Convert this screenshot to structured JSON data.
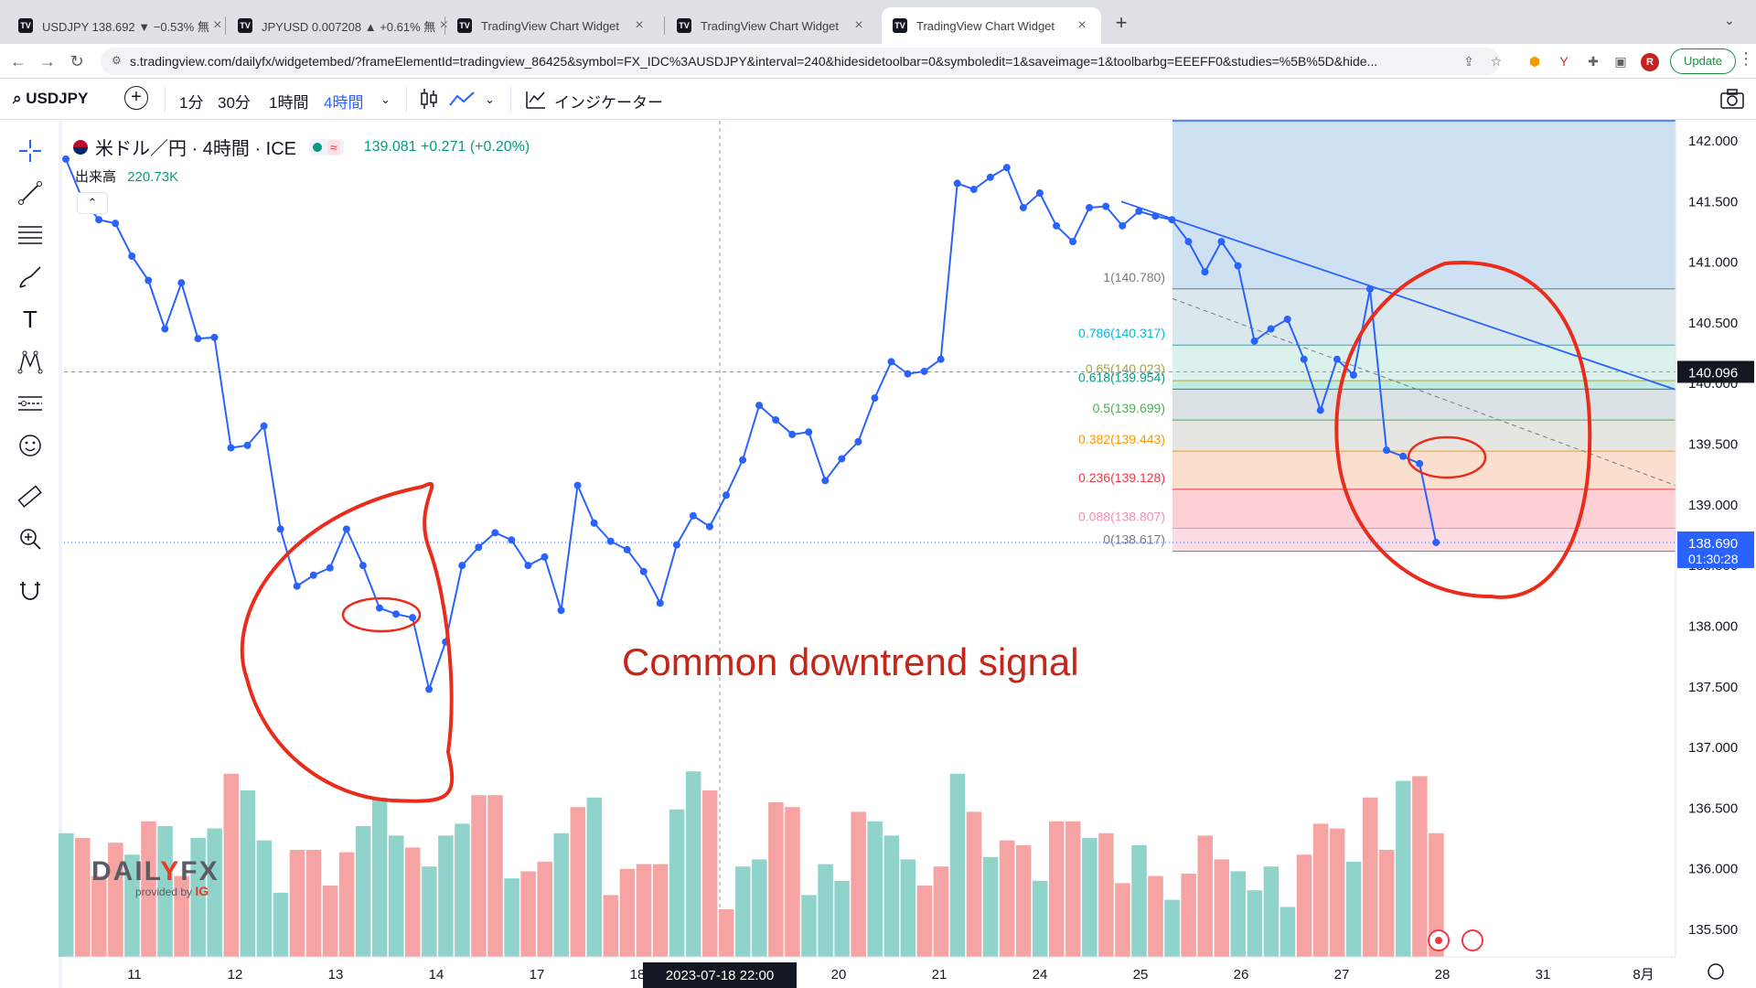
{
  "browser": {
    "tabs": [
      {
        "title": "USDJPY 138.692 ▼ −0.53% 無",
        "active": false
      },
      {
        "title": "JPYUSD 0.007208 ▲ +0.61% 無",
        "active": false
      },
      {
        "title": "TradingView Chart Widget",
        "active": false
      },
      {
        "title": "TradingView Chart Widget",
        "active": false
      },
      {
        "title": "TradingView Chart Widget",
        "active": true
      }
    ],
    "favicon_text": "TV",
    "url": "s.tradingview.com/dailyfx/widgetembed/?frameElementId=tradingview_86425&symbol=FX_IDC%3AUSDJPY&interval=240&hidesidetoolbar=0&symboledit=1&saveimage=1&toolbarbg=EEEFF0&studies=%5B%5D&hide...",
    "profile_initial": "R",
    "update_label": "Update"
  },
  "toolbar": {
    "symbol": "USDJPY",
    "intervals": [
      "1分",
      "30分",
      "1時間",
      "4時間"
    ],
    "active_interval": "4時間",
    "indicators_label": "インジケーター"
  },
  "legend": {
    "title": "米ドル／円 · 4時間 · ICE",
    "price": "139.081  +0.271 (+0.20%)",
    "volume_label": "出来高",
    "volume_value": "220.73K"
  },
  "annotation": "Common downtrend signal",
  "logo": {
    "brand_prefix": "DAIL",
    "brand_mid": "Y",
    "brand_suffix": "FX",
    "provided_by": "provided by",
    "ig": "IG"
  },
  "colors": {
    "line": "#2962ff",
    "up_volume": "#8fd3cb",
    "down_volume": "#f5a3a3",
    "circle": "#ea2c1c",
    "last_price": "#2962ff",
    "cursor_price": "#131722"
  },
  "chart_data": {
    "type": "line",
    "symbol": "USDJPY",
    "ylim": [
      135.3,
      142.1
    ],
    "y_ticks": [
      "142.000",
      "141.500",
      "141.000",
      "140.500",
      "140.000",
      "139.500",
      "139.000",
      "138.500",
      "138.000",
      "137.500",
      "137.000",
      "136.500",
      "136.000",
      "135.500"
    ],
    "x_ticks": [
      "11",
      "12",
      "13",
      "14",
      "17",
      "18",
      "20",
      "21",
      "24",
      "25",
      "26",
      "27",
      "28",
      "31",
      "8月"
    ],
    "cursor_date": "2023-07-18   22:00",
    "cursor_price": "140.096",
    "last_price": "138.690",
    "countdown": "01:30:28",
    "prices": [
      141.85,
      141.52,
      141.35,
      141.32,
      141.05,
      140.85,
      140.45,
      140.83,
      140.37,
      140.38,
      139.47,
      139.49,
      139.65,
      138.8,
      138.33,
      138.42,
      138.48,
      138.8,
      138.5,
      138.15,
      138.1,
      138.07,
      137.48,
      137.87,
      138.5,
      138.65,
      138.77,
      138.71,
      138.5,
      138.57,
      138.13,
      139.16,
      138.85,
      138.7,
      138.63,
      138.45,
      138.19,
      138.67,
      138.91,
      138.82,
      139.08,
      139.37,
      139.82,
      139.7,
      139.58,
      139.6,
      139.2,
      139.38,
      139.52,
      139.88,
      140.18,
      140.08,
      140.1,
      140.2,
      141.65,
      141.6,
      141.7,
      141.78,
      141.45,
      141.57,
      141.3,
      141.17,
      141.45,
      141.46,
      141.3,
      141.42,
      141.38,
      141.35,
      141.17,
      140.92,
      141.17,
      140.97,
      140.35,
      140.45,
      140.53,
      140.2,
      139.78,
      140.2,
      140.07,
      140.78,
      139.45,
      139.4,
      139.34,
      138.69
    ],
    "volume": {
      "values": [
        0.52,
        0.5,
        0.34,
        0.48,
        0.43,
        0.57,
        0.55,
        0.34,
        0.5,
        0.54,
        0.77,
        0.7,
        0.49,
        0.27,
        0.45,
        0.45,
        0.3,
        0.44,
        0.55,
        0.67,
        0.51,
        0.46,
        0.38,
        0.51,
        0.56,
        0.68,
        0.68,
        0.33,
        0.36,
        0.4,
        0.52,
        0.63,
        0.67,
        0.26,
        0.37,
        0.39,
        0.39,
        0.62,
        0.78,
        0.7,
        0.2,
        0.38,
        0.41,
        0.65,
        0.63,
        0.26,
        0.39,
        0.32,
        0.61,
        0.57,
        0.51,
        0.41,
        0.3,
        0.38,
        0.77,
        0.61,
        0.42,
        0.49,
        0.47,
        0.32,
        0.57,
        0.57,
        0.5,
        0.52,
        0.31,
        0.47,
        0.34,
        0.24,
        0.35,
        0.51,
        0.41,
        0.36,
        0.28,
        0.38,
        0.21,
        0.43,
        0.56,
        0.54,
        0.4,
        0.67,
        0.45,
        0.74,
        0.76,
        0.52
      ],
      "up": [
        1,
        0,
        0,
        0,
        1,
        0,
        1,
        0,
        1,
        1,
        0,
        1,
        1,
        1,
        0,
        0,
        0,
        0,
        1,
        1,
        1,
        0,
        1,
        1,
        1,
        0,
        0,
        1,
        0,
        0,
        1,
        0,
        1,
        0,
        0,
        0,
        0,
        1,
        1,
        0,
        0,
        1,
        1,
        0,
        0,
        1,
        1,
        1,
        0,
        1,
        1,
        1,
        0,
        0,
        1,
        0,
        1,
        0,
        0,
        1,
        0,
        0,
        1,
        0,
        0,
        1,
        0,
        1,
        0,
        0,
        0,
        1,
        1,
        1,
        1,
        0,
        0,
        0,
        1,
        0,
        0,
        1,
        0,
        0
      ]
    },
    "fibonacci": [
      {
        "label": "1(140.780)",
        "value": 140.78,
        "color": "#787b86",
        "fill": "#d3e3e9"
      },
      {
        "label": "0.786(140.317)",
        "value": 140.317,
        "color": "#00bcd4",
        "fill": "#d5eee7"
      },
      {
        "label": "0.65(140.023)",
        "value": 140.023,
        "color": "#a5a83b",
        "fill": "#b8e8e0"
      },
      {
        "label": "0.618(139.954)",
        "value": 139.954,
        "color": "#089981",
        "fill": "#d3dde2"
      },
      {
        "label": "0.5(139.699)",
        "value": 139.699,
        "color": "#4caf50",
        "fill": "#e1e0dc"
      },
      {
        "label": "0.382(139.443)",
        "value": 139.443,
        "color": "#ff9800",
        "fill": "#fad9c5"
      },
      {
        "label": "0.236(139.128)",
        "value": 139.128,
        "color": "#f23645",
        "fill": "#fbc8cd"
      },
      {
        "label": "0.088(138.807)",
        "value": 138.807,
        "color": "#f48fb1",
        "fill": "#fbd7df"
      },
      {
        "label": "0(138.617)",
        "value": 138.617,
        "color": "#787b86",
        "fill": null
      }
    ],
    "fib_top_fill": {
      "value": 142.1,
      "color": "#c5dcf0"
    }
  }
}
